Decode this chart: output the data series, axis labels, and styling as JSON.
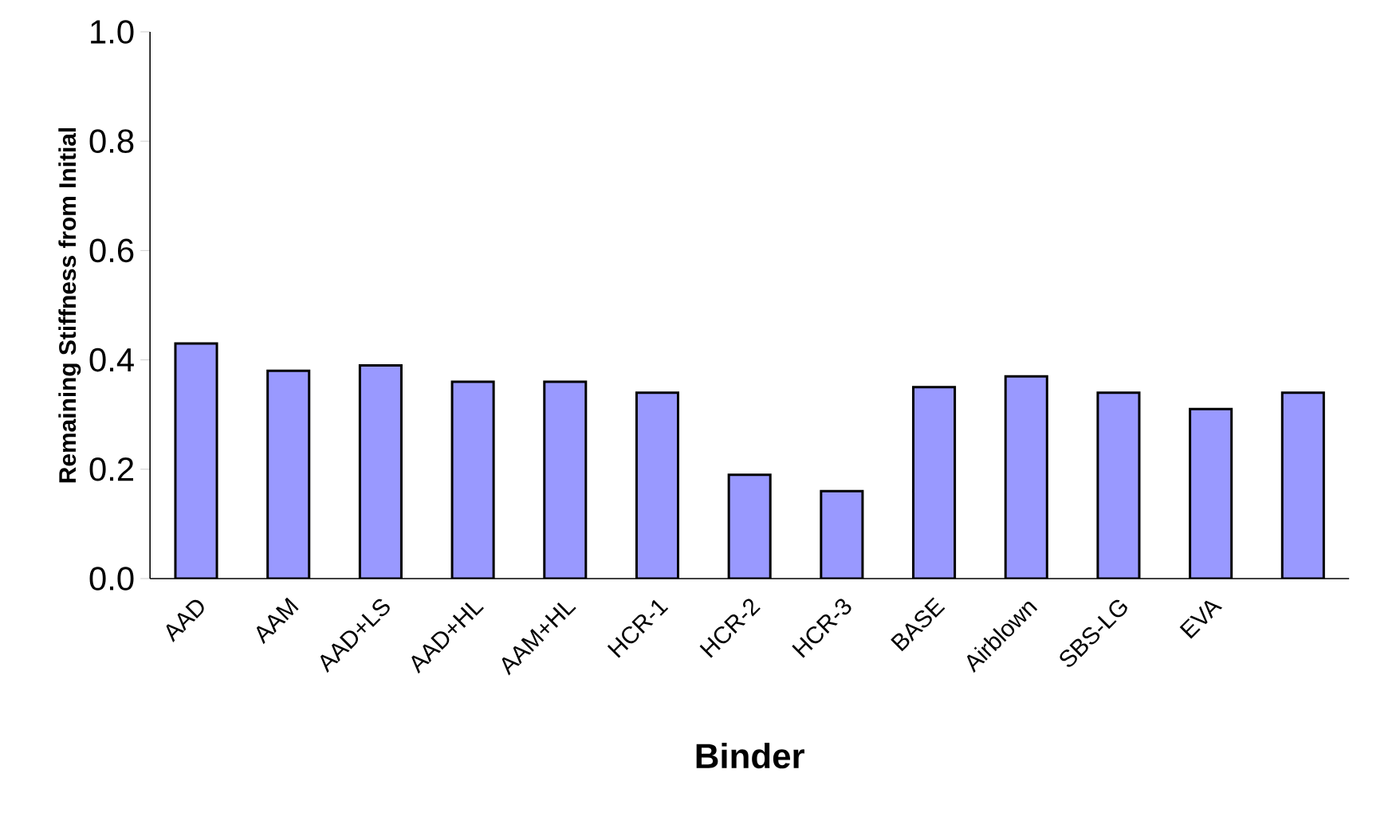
{
  "chart_data": {
    "type": "bar",
    "xlabel": "Binder",
    "ylabel": "Remaining Stiffness from Initial",
    "categories": [
      "AAD",
      "AAM",
      "AAD+LS",
      "AAD+HL",
      "AAM+HL",
      "HCR-1",
      "HCR-2",
      "HCR-3",
      "BASE",
      "Airblown",
      "SBS-LG",
      "EVA",
      null
    ],
    "values": [
      0.43,
      0.38,
      0.39,
      0.36,
      0.36,
      0.34,
      0.19,
      0.16,
      0.35,
      0.37,
      0.34,
      0.31,
      0.34
    ],
    "color": "#9999ff",
    "ylim": [
      0,
      1
    ],
    "yticks": [
      {
        "value": 0,
        "label": "0.0"
      },
      {
        "value": 0.2,
        "label": "0.2"
      },
      {
        "value": 0.4,
        "label": "0.4"
      },
      {
        "value": 0.6,
        "label": "0.6"
      },
      {
        "value": 0.8,
        "label": "0.8"
      },
      {
        "value": 1,
        "label": "1.0"
      }
    ]
  }
}
